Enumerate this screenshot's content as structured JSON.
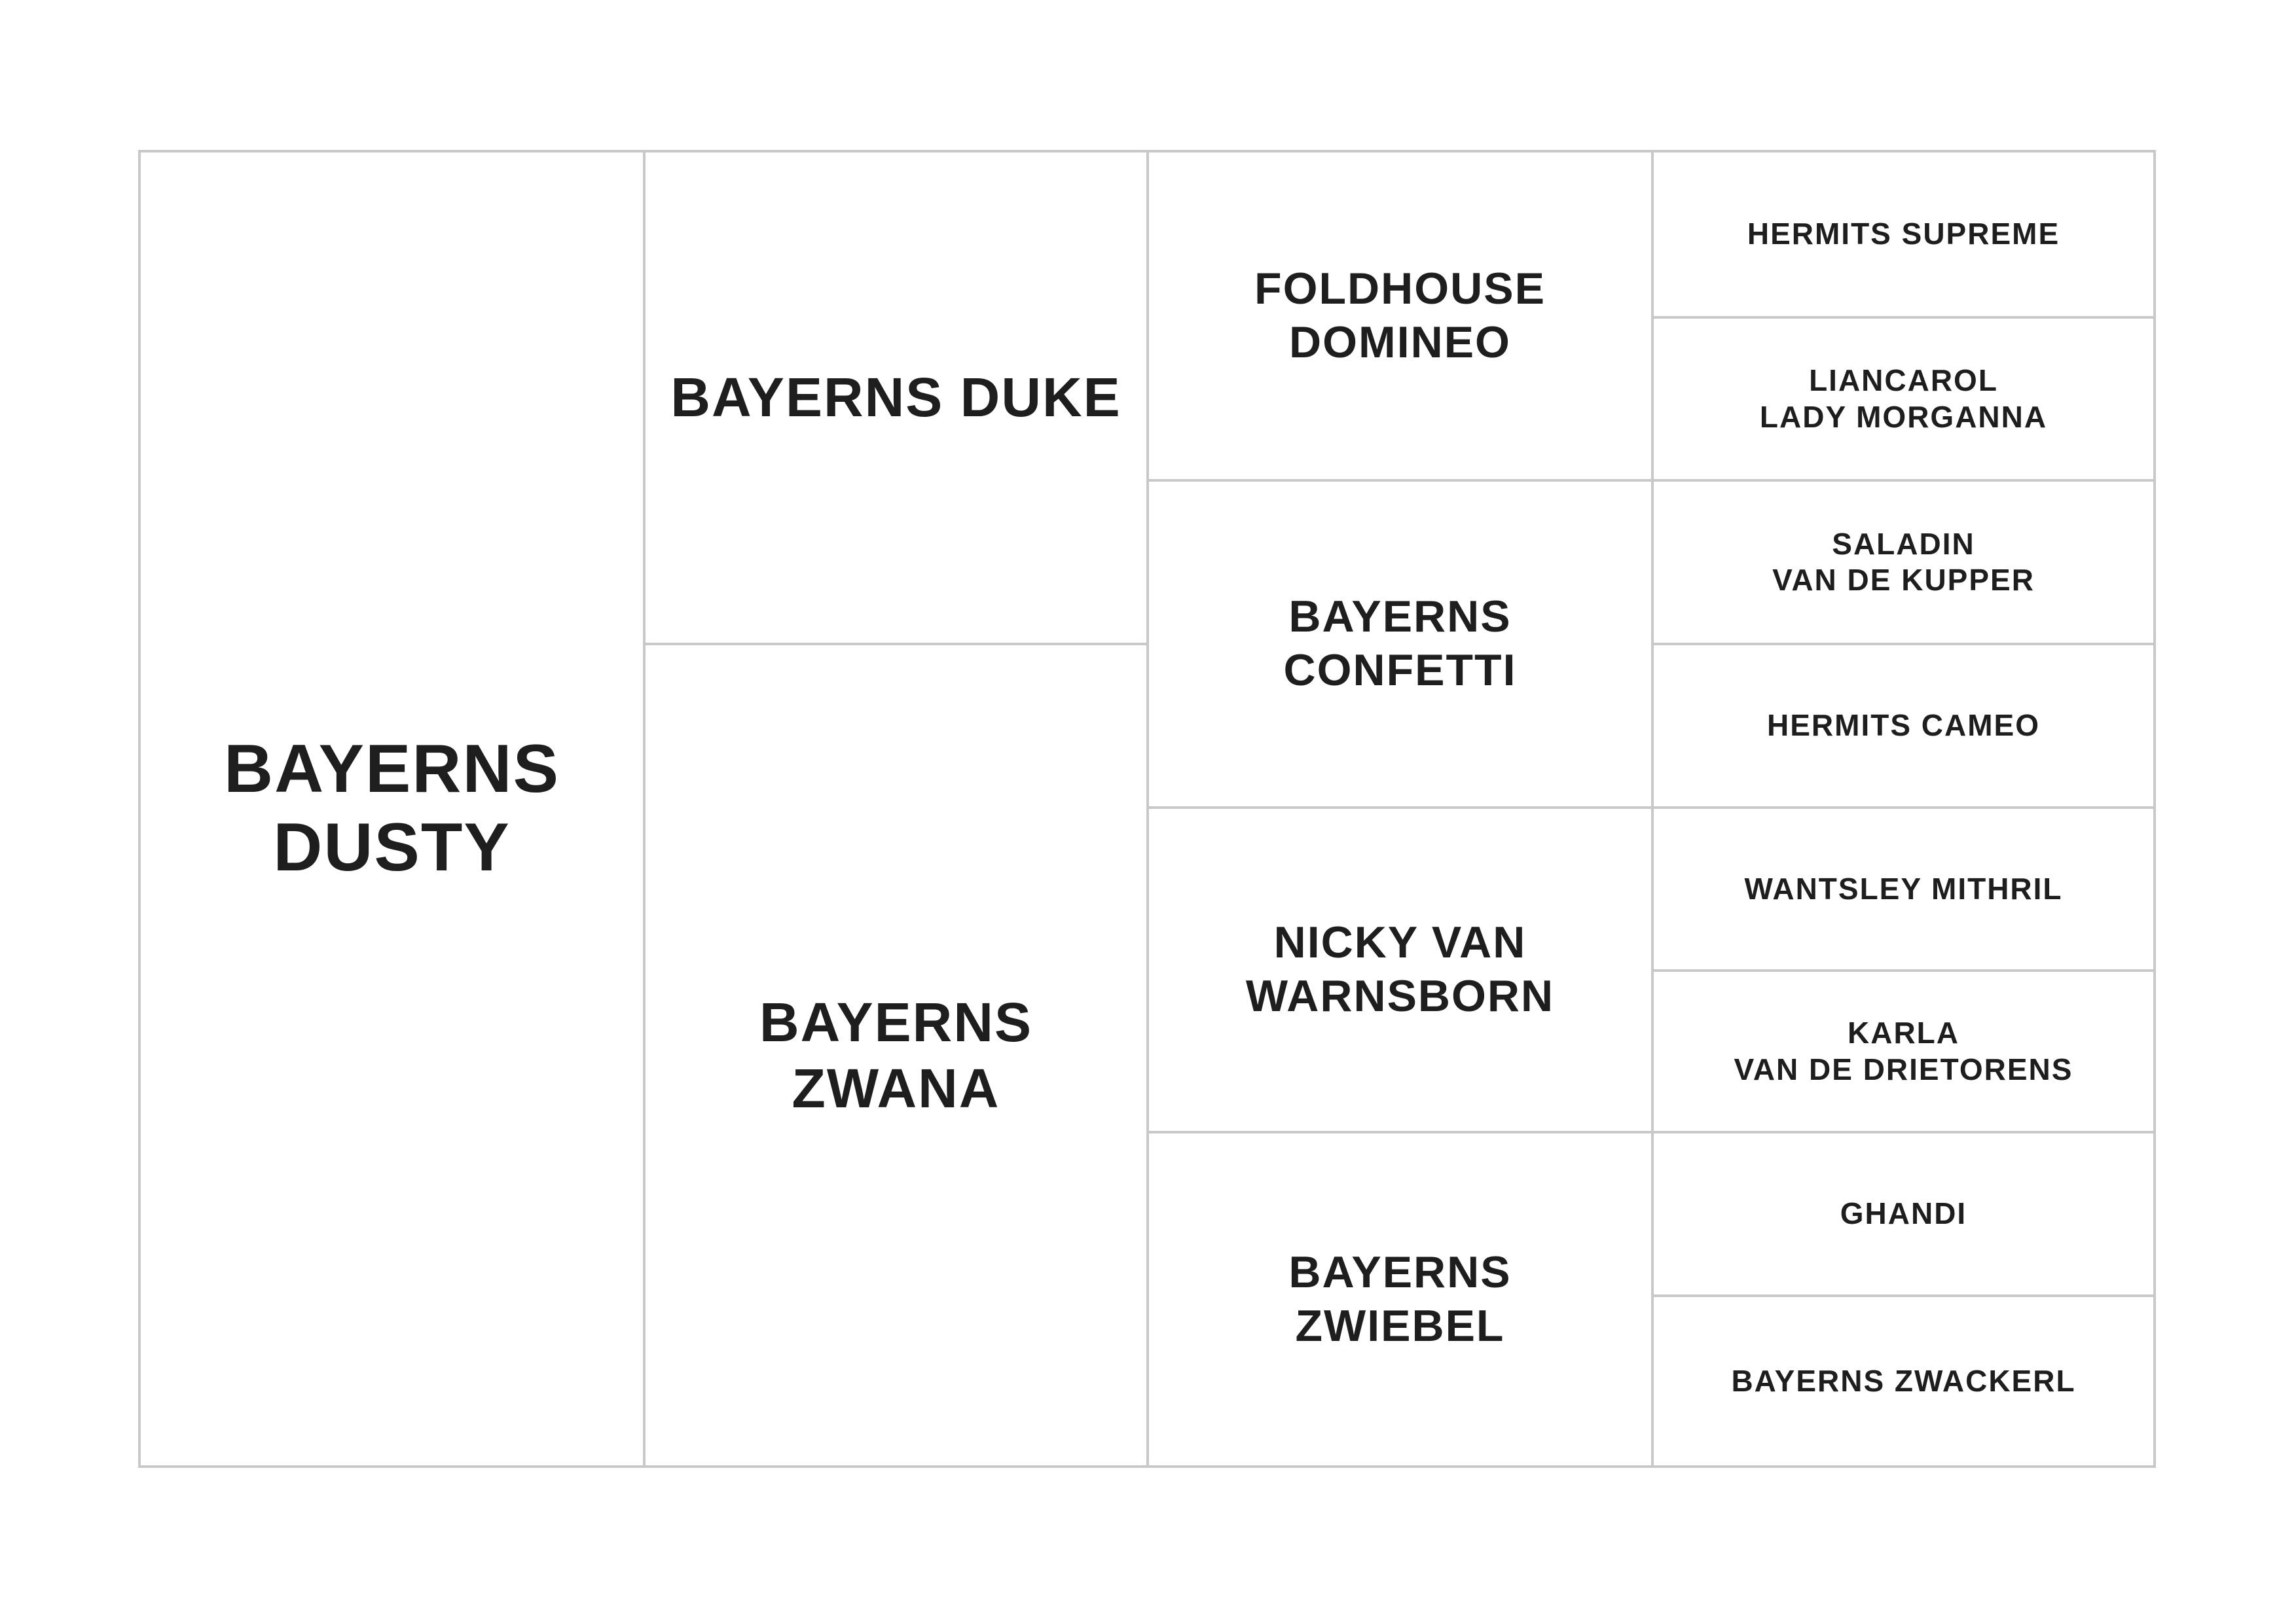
{
  "pedigree": {
    "subject": "BAYERNS\nDUSTY",
    "parents": [
      "BAYERNS DUKE",
      "BAYERNS\nZWANA"
    ],
    "grandparents": [
      "FOLDHOUSE\nDOMINEO",
      "BAYERNS\nCONFETTI",
      "NICKY VAN\nWARNSBORN",
      "BAYERNS\nZWIEBEL"
    ],
    "great_grandparents": [
      "HERMITS SUPREME",
      "LIANCAROL\nLADY MORGANNA",
      "SALADIN\nVAN DE KUPPER",
      "HERMITS CAMEO",
      "WANTSLEY MITHRIL",
      "KARLA\nVAN DE DRIETORENS",
      "GHANDI",
      "BAYERNS ZWACKERL"
    ]
  }
}
